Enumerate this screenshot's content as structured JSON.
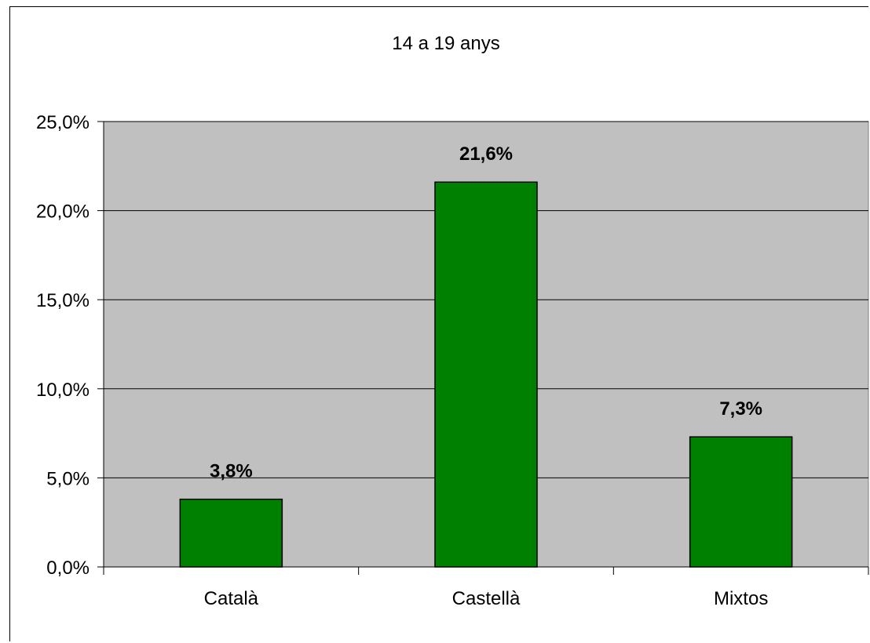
{
  "chart_data": {
    "type": "bar",
    "title": "14 a 19 anys",
    "categories": [
      "Català",
      "Castellà",
      "Mixtos"
    ],
    "values": [
      3.8,
      21.6,
      7.3
    ],
    "data_labels": [
      "3,8%",
      "21,6%",
      "7,3%"
    ],
    "y_ticks": [
      0,
      5,
      10,
      15,
      20,
      25
    ],
    "y_tick_labels": [
      "0,0%",
      "5,0%",
      "10,0%",
      "15,0%",
      "20,0%",
      "25,0%"
    ],
    "ylim": [
      0,
      25
    ],
    "grid": true,
    "legend": "none",
    "colors": {
      "bar_fill": "#008000",
      "plot_background": "#c0c0c0",
      "gridline": "#000000"
    }
  }
}
